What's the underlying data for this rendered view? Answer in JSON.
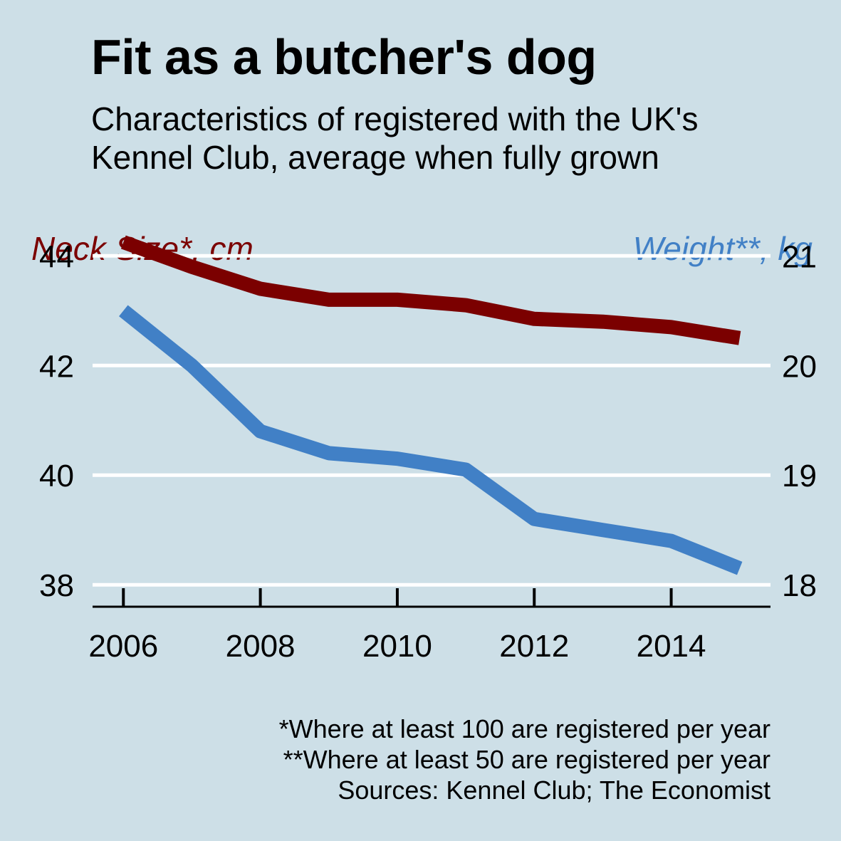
{
  "title": "Fit as a butcher's dog",
  "subtitle_lines": [
    "Characteristics of registered with the UK's",
    "Kennel Club, average when fully grown"
  ],
  "notes": [
    "*Where at least 100 are registered per year",
    "**Where at least 50 are registered per year",
    "Sources: Kennel Club; The Economist"
  ],
  "chart_data": {
    "type": "line",
    "x": [
      2006,
      2007,
      2008,
      2009,
      2010,
      2011,
      2012,
      2013,
      2014,
      2015
    ],
    "xticks": [
      2006,
      2008,
      2010,
      2012,
      2014
    ],
    "xlim": [
      2005.55,
      2015.45
    ],
    "grid": true,
    "left_axis": {
      "label": "Neck Size*, cm",
      "ticks": [
        38,
        40,
        42,
        44
      ],
      "ylim": [
        37.6,
        44.9
      ],
      "color": "#7b0000"
    },
    "right_axis": {
      "label": "Weight**, kg",
      "ticks": [
        18,
        19,
        20,
        21
      ],
      "ylim": [
        17.8,
        21.45
      ],
      "color": "#4180c6"
    },
    "series": [
      {
        "name": "Neck Size*, cm",
        "axis": "left",
        "color": "#7b0000",
        "values": [
          44.25,
          43.8,
          43.4,
          43.2,
          43.2,
          43.1,
          42.85,
          42.8,
          42.7,
          42.5
        ]
      },
      {
        "name": "Weight**, kg",
        "axis": "right",
        "color": "#4180c6",
        "values": [
          20.5,
          20.0,
          19.4,
          19.2,
          19.15,
          19.05,
          18.6,
          18.5,
          18.4,
          18.15
        ]
      }
    ]
  }
}
